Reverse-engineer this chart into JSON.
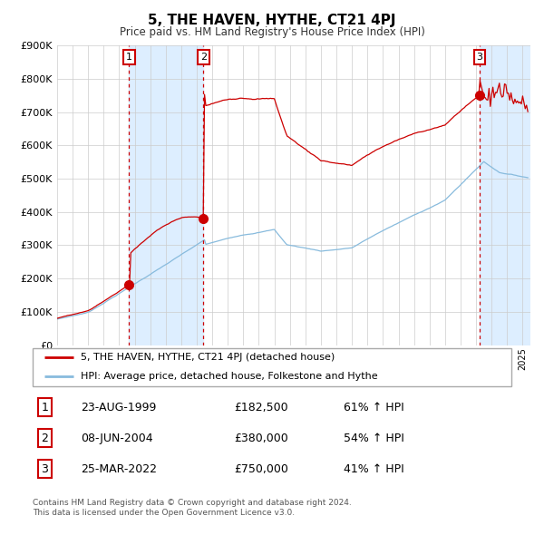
{
  "title": "5, THE HAVEN, HYTHE, CT21 4PJ",
  "subtitle": "Price paid vs. HM Land Registry's House Price Index (HPI)",
  "ylim": [
    0,
    900000
  ],
  "yticks": [
    0,
    100000,
    200000,
    300000,
    400000,
    500000,
    600000,
    700000,
    800000,
    900000
  ],
  "xstart": 1995.0,
  "xend": 2025.5,
  "purchase_dates": [
    1999.644,
    2004.436,
    2022.228
  ],
  "purchase_prices": [
    182500,
    380000,
    750000
  ],
  "purchase_labels": [
    "1",
    "2",
    "3"
  ],
  "legend_property": "5, THE HAVEN, HYTHE, CT21 4PJ (detached house)",
  "legend_hpi": "HPI: Average price, detached house, Folkestone and Hythe",
  "table": [
    {
      "num": "1",
      "date": "23-AUG-1999",
      "price": "£182,500",
      "change": "61% ↑ HPI"
    },
    {
      "num": "2",
      "date": "08-JUN-2004",
      "price": "£380,000",
      "change": "54% ↑ HPI"
    },
    {
      "num": "3",
      "date": "25-MAR-2022",
      "price": "£750,000",
      "change": "41% ↑ HPI"
    }
  ],
  "footnote1": "Contains HM Land Registry data © Crown copyright and database right 2024.",
  "footnote2": "This data is licensed under the Open Government Licence v3.0.",
  "property_color": "#cc0000",
  "hpi_color": "#88bbdd",
  "shade_color": "#ddeeff",
  "grid_color": "#cccccc",
  "background_color": "#ffffff"
}
